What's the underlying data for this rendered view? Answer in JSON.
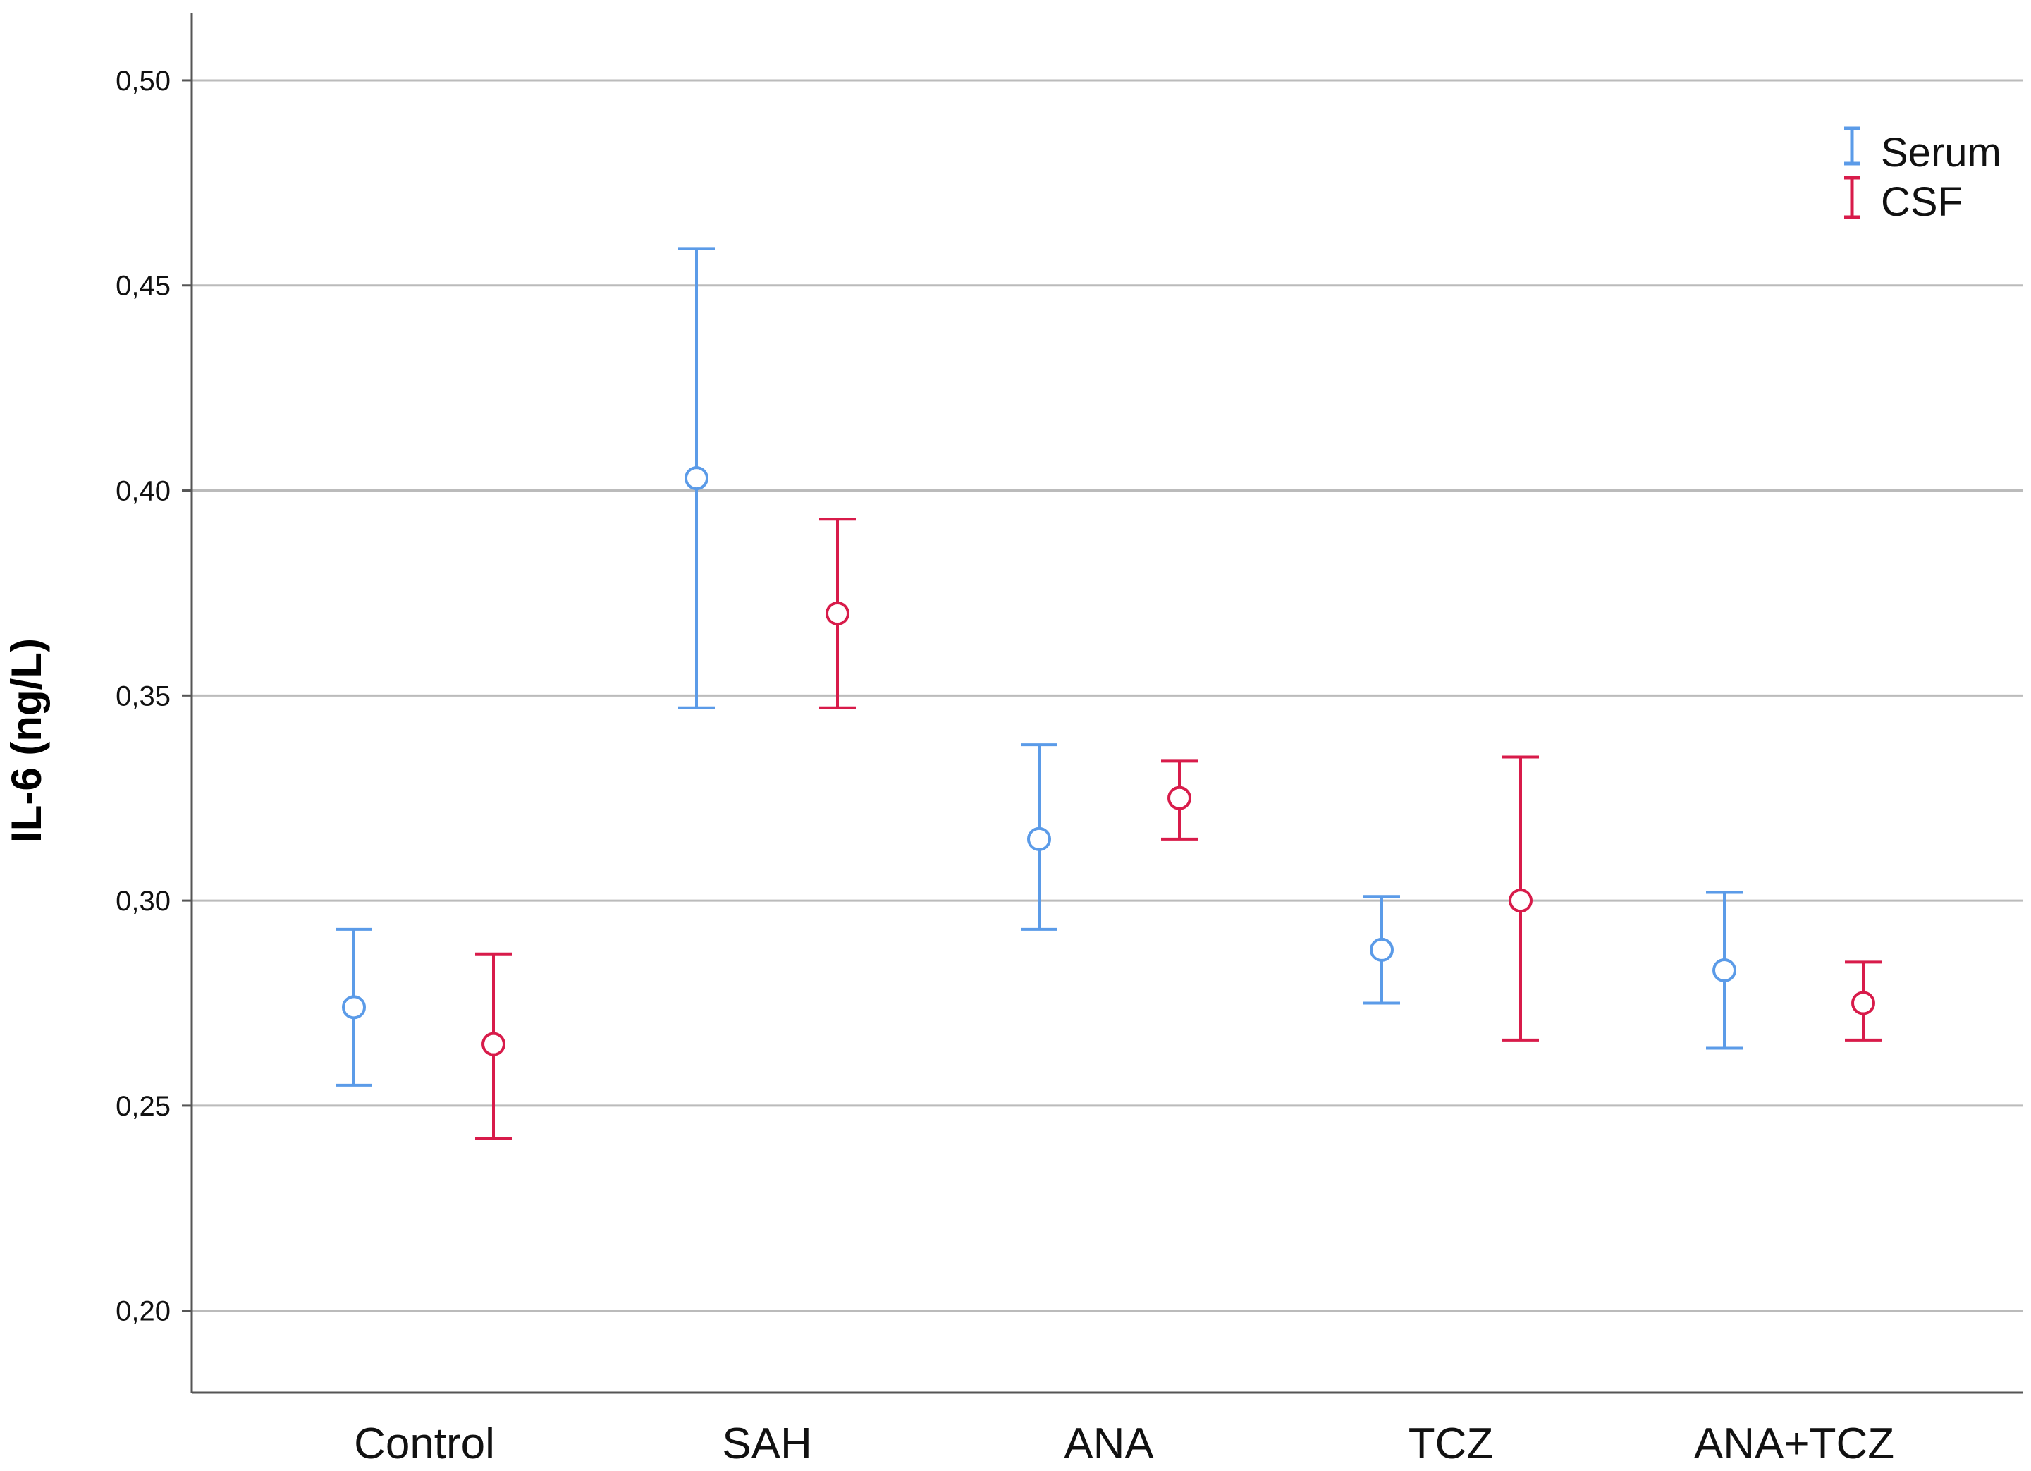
{
  "chart_data": {
    "type": "errorbar",
    "title": "",
    "xlabel": "",
    "ylabel": "IL-6 (ng/L)",
    "ylim": [
      0.18,
      0.5165
    ],
    "yticks": [
      0.2,
      0.25,
      0.3,
      0.35,
      0.4,
      0.45,
      0.5
    ],
    "ytick_labels": [
      "0,20",
      "0,25",
      "0,30",
      "0,35",
      "0,40",
      "0,45",
      "0,50"
    ],
    "grid": true,
    "legend_position": "top-right",
    "categories": [
      "Control",
      "SAH",
      "ANA",
      "TCZ",
      "ANA+TCZ"
    ],
    "series": [
      {
        "name": "Serum",
        "color": "#5b9be8",
        "means": [
          0.274,
          0.403,
          0.315,
          0.288,
          0.283
        ],
        "lower": [
          0.255,
          0.347,
          0.293,
          0.275,
          0.264
        ],
        "upper": [
          0.293,
          0.459,
          0.338,
          0.301,
          0.302
        ]
      },
      {
        "name": "CSF",
        "color": "#d81b4a",
        "means": [
          0.265,
          0.37,
          0.325,
          0.3,
          0.275
        ],
        "lower": [
          0.242,
          0.347,
          0.315,
          0.266,
          0.266
        ],
        "upper": [
          0.287,
          0.393,
          0.334,
          0.335,
          0.285
        ]
      }
    ]
  },
  "axis_color": "#555555",
  "grid_color": "#bbbbbb"
}
